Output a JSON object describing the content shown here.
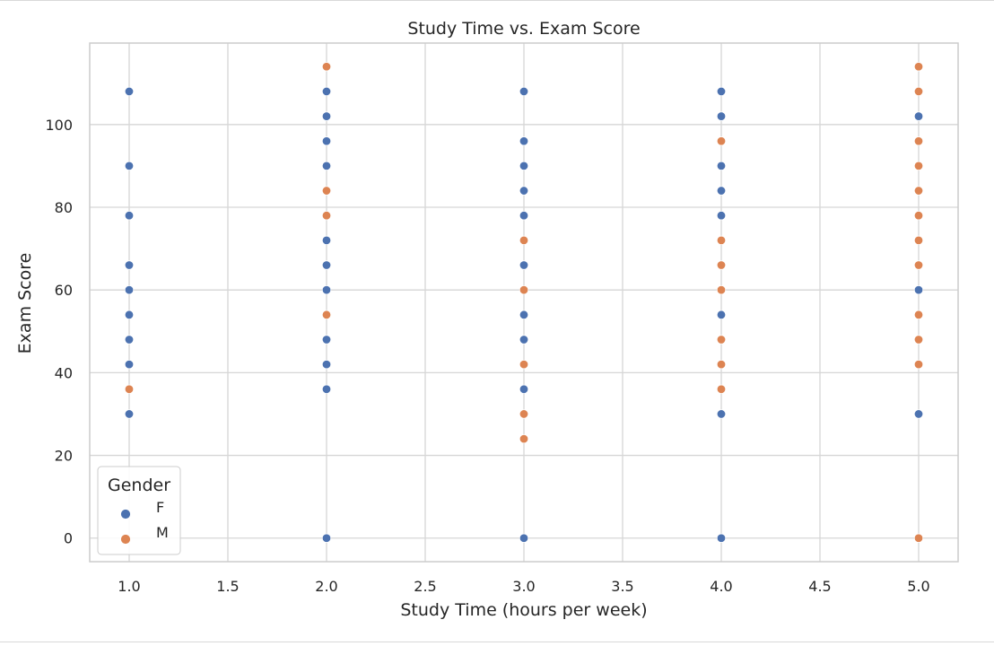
{
  "chart_data": {
    "type": "scatter",
    "title": "Study Time vs. Exam Score",
    "xlabel": "Study Time (hours per week)",
    "ylabel": "Exam Score",
    "xlim": [
      0.8,
      5.2
    ],
    "ylim": [
      -5.7,
      119.7
    ],
    "xticks": [
      "1.0",
      "1.5",
      "2.0",
      "2.5",
      "3.0",
      "3.5",
      "4.0",
      "4.5",
      "5.0"
    ],
    "yticks": [
      "0",
      "20",
      "40",
      "60",
      "80",
      "100"
    ],
    "grid": true,
    "legend": {
      "title": "Gender",
      "placement": "lower-left"
    },
    "series": [
      {
        "name": "F",
        "color": "#4c72b0",
        "points": [
          [
            1,
            108
          ],
          [
            1,
            90
          ],
          [
            1,
            78
          ],
          [
            1,
            66
          ],
          [
            1,
            60
          ],
          [
            1,
            54
          ],
          [
            1,
            48
          ],
          [
            1,
            42
          ],
          [
            1,
            30
          ],
          [
            2,
            108
          ],
          [
            2,
            102
          ],
          [
            2,
            96
          ],
          [
            2,
            90
          ],
          [
            2,
            72
          ],
          [
            2,
            66
          ],
          [
            2,
            60
          ],
          [
            2,
            48
          ],
          [
            2,
            42
          ],
          [
            2,
            36
          ],
          [
            2,
            0
          ],
          [
            3,
            108
          ],
          [
            3,
            96
          ],
          [
            3,
            90
          ],
          [
            3,
            84
          ],
          [
            3,
            78
          ],
          [
            3,
            66
          ],
          [
            3,
            54
          ],
          [
            3,
            48
          ],
          [
            3,
            36
          ],
          [
            3,
            0
          ],
          [
            4,
            108
          ],
          [
            4,
            102
          ],
          [
            4,
            90
          ],
          [
            4,
            84
          ],
          [
            4,
            78
          ],
          [
            4,
            54
          ],
          [
            4,
            30
          ],
          [
            4,
            0
          ],
          [
            5,
            102
          ],
          [
            5,
            60
          ],
          [
            5,
            30
          ]
        ]
      },
      {
        "name": "M",
        "color": "#dd8452",
        "points": [
          [
            1,
            36
          ],
          [
            2,
            114
          ],
          [
            2,
            84
          ],
          [
            2,
            78
          ],
          [
            2,
            54
          ],
          [
            3,
            72
          ],
          [
            3,
            60
          ],
          [
            3,
            42
          ],
          [
            3,
            30
          ],
          [
            3,
            24
          ],
          [
            4,
            96
          ],
          [
            4,
            72
          ],
          [
            4,
            66
          ],
          [
            4,
            60
          ],
          [
            4,
            48
          ],
          [
            4,
            42
          ],
          [
            4,
            36
          ],
          [
            5,
            114
          ],
          [
            5,
            108
          ],
          [
            5,
            96
          ],
          [
            5,
            90
          ],
          [
            5,
            84
          ],
          [
            5,
            78
          ],
          [
            5,
            72
          ],
          [
            5,
            66
          ],
          [
            5,
            54
          ],
          [
            5,
            48
          ],
          [
            5,
            42
          ],
          [
            5,
            0
          ]
        ]
      }
    ]
  }
}
